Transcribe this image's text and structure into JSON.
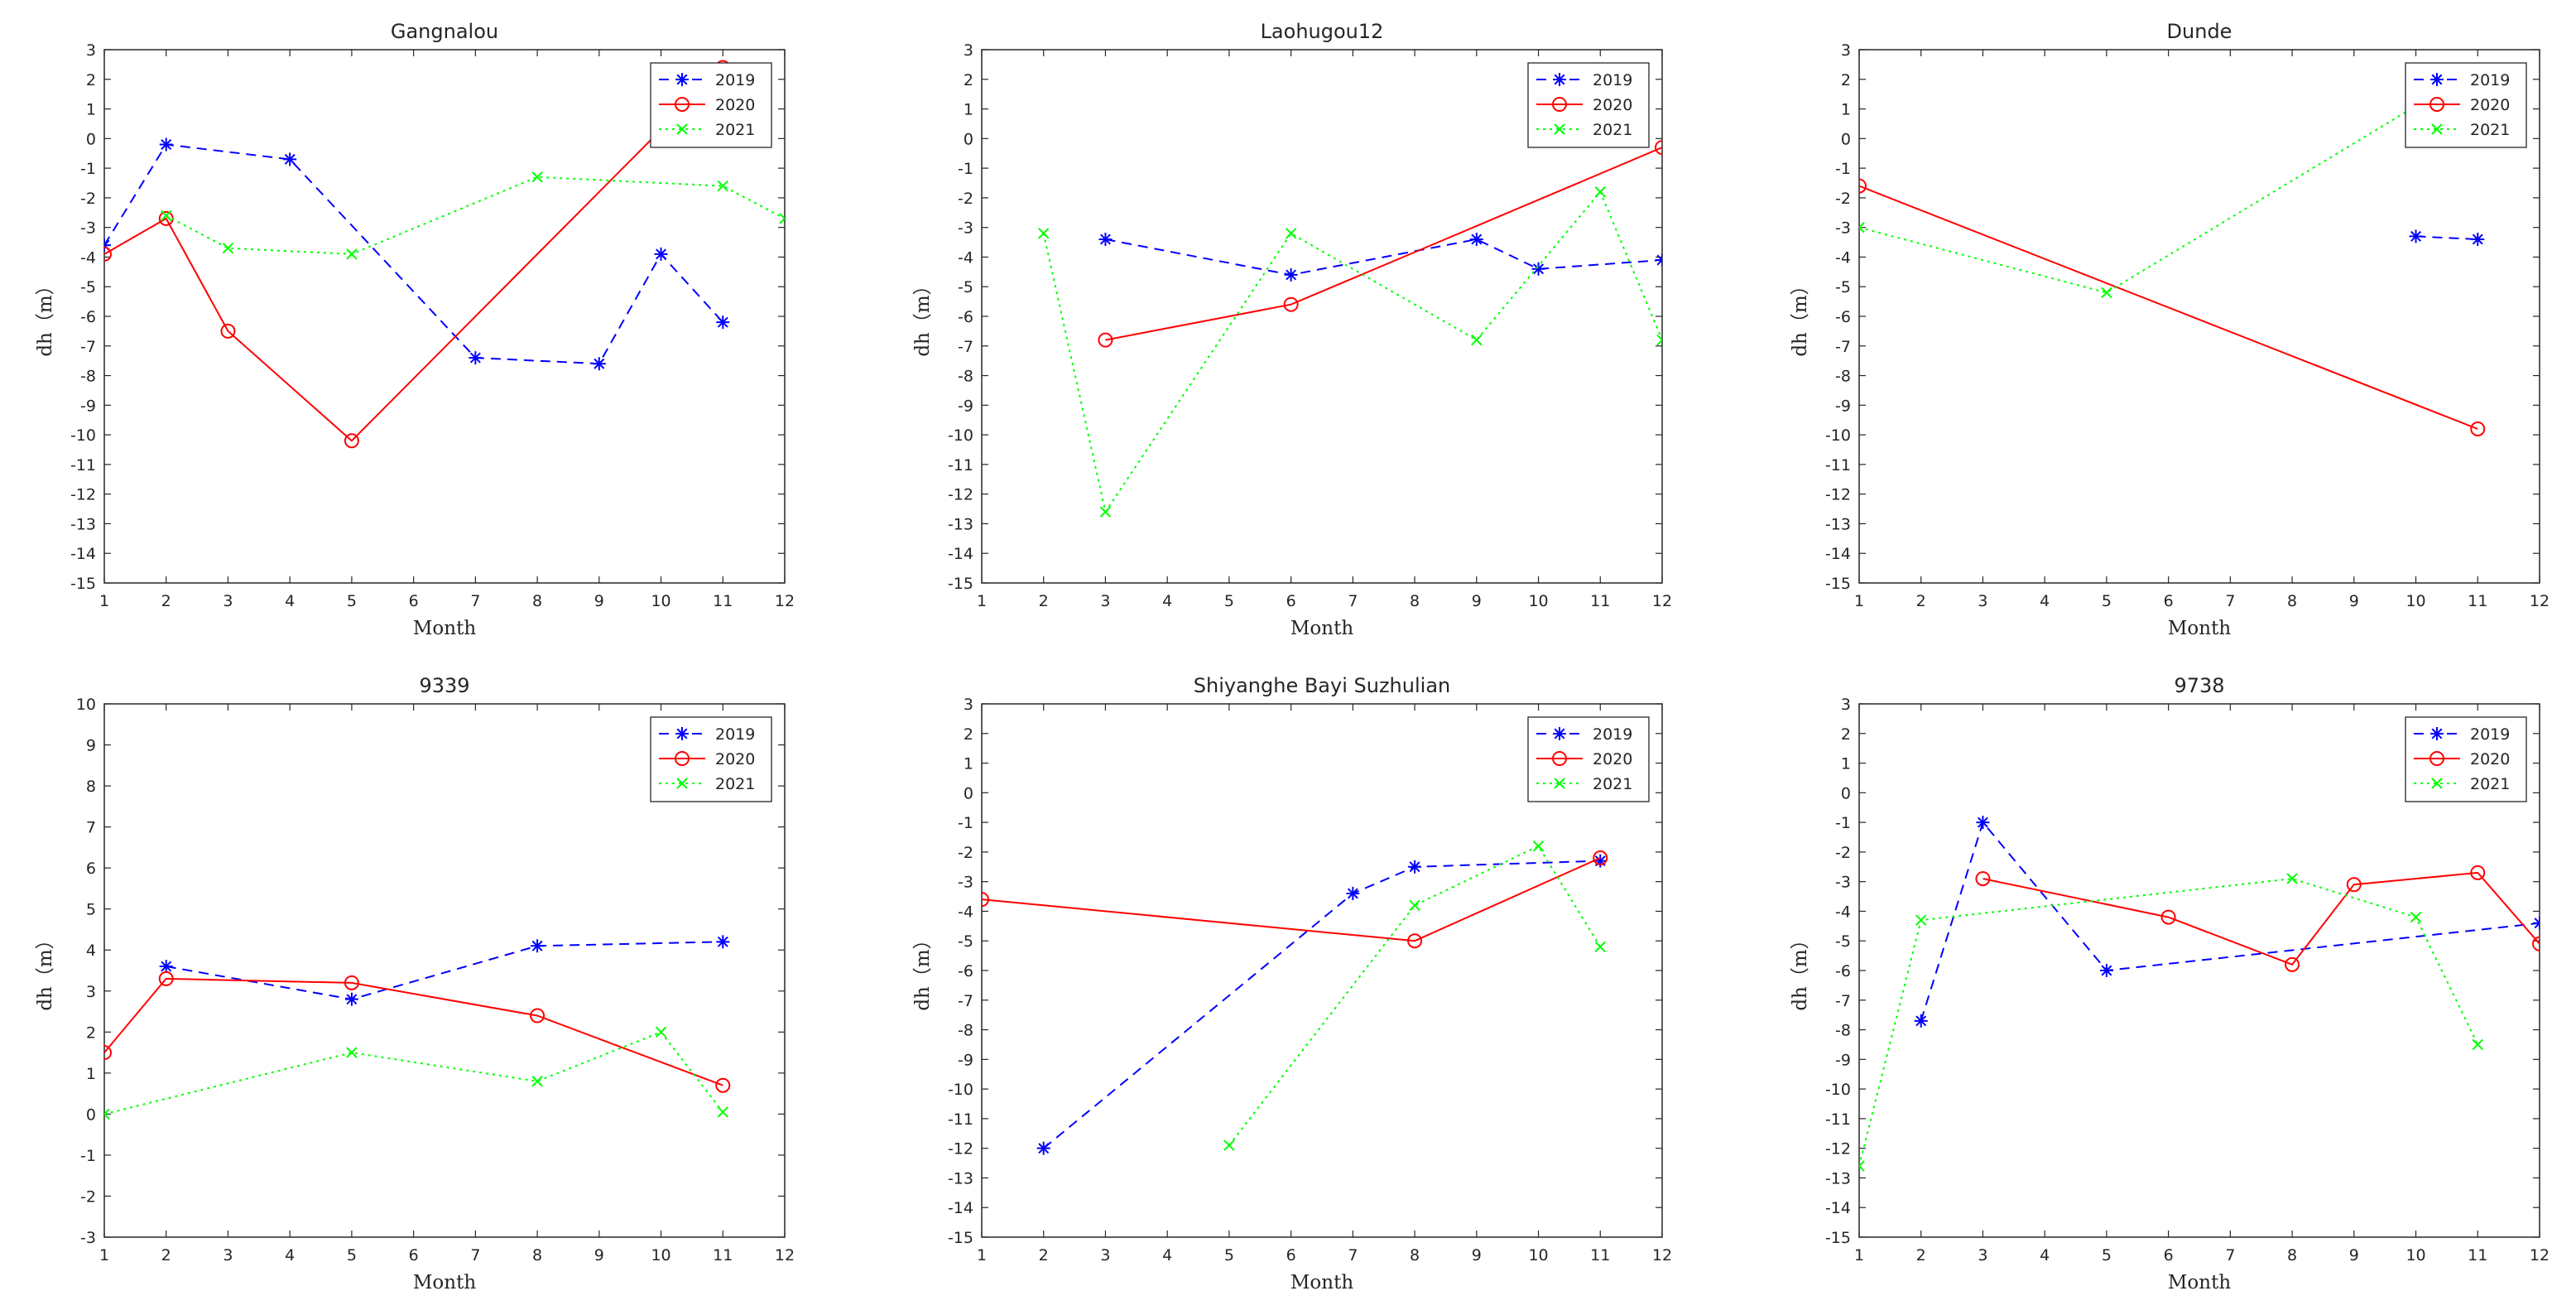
{
  "figure": {
    "series_names": [
      "2019",
      "2020",
      "2021"
    ],
    "series_colors": [
      "#0000ff",
      "#ff0000",
      "#00ff00"
    ],
    "markers": [
      "asterisk",
      "circle",
      "x-mark"
    ],
    "x_label": "Month",
    "y_label": "dh（m）"
  },
  "chart_data": [
    {
      "type": "line",
      "title": "Gangnalou",
      "xlabel": "Month",
      "ylabel": "dh（m）",
      "xlim": [
        1,
        12
      ],
      "ylim": [
        -15,
        3
      ],
      "yticks_step": 1,
      "legend": "top-right",
      "series": [
        {
          "name": "2019",
          "x": [
            1,
            2,
            4,
            7,
            9,
            10,
            11
          ],
          "y": [
            -3.6,
            -0.2,
            -0.7,
            -7.4,
            -7.6,
            -3.9,
            -6.2
          ]
        },
        {
          "name": "2020",
          "x": [
            1,
            2,
            3,
            5,
            11
          ],
          "y": [
            -3.9,
            -2.7,
            -6.5,
            -10.2,
            2.4
          ]
        },
        {
          "name": "2021",
          "x": [
            2,
            3,
            5,
            8,
            11,
            12
          ],
          "y": [
            -2.6,
            -3.7,
            -3.9,
            -1.3,
            -1.6,
            -2.7
          ]
        }
      ]
    },
    {
      "type": "line",
      "title": "Laohugou12",
      "xlabel": "Month",
      "ylabel": "dh（m）",
      "xlim": [
        1,
        12
      ],
      "ylim": [
        -15,
        3
      ],
      "yticks_step": 1,
      "legend": "top-right",
      "series": [
        {
          "name": "2019",
          "x": [
            3,
            6,
            9,
            10,
            12
          ],
          "y": [
            -3.4,
            -4.6,
            -3.4,
            -4.4,
            -4.1
          ]
        },
        {
          "name": "2020",
          "x": [
            3,
            6,
            12
          ],
          "y": [
            -6.8,
            -5.6,
            -0.3
          ]
        },
        {
          "name": "2021",
          "x": [
            2,
            3,
            6,
            9,
            11,
            12
          ],
          "y": [
            -3.2,
            -12.6,
            -3.2,
            -6.8,
            -1.8,
            -6.8
          ]
        }
      ]
    },
    {
      "type": "line",
      "title": "Dunde",
      "xlabel": "Month",
      "ylabel": "dh（m）",
      "xlim": [
        1,
        12
      ],
      "ylim": [
        -15,
        3
      ],
      "yticks_step": 1,
      "legend": "top-right",
      "series": [
        {
          "name": "2019",
          "x": [
            10,
            11
          ],
          "y": [
            -3.3,
            -3.4
          ]
        },
        {
          "name": "2020",
          "x": [
            1,
            11
          ],
          "y": [
            -1.6,
            -9.8
          ]
        },
        {
          "name": "2021",
          "x": [
            1,
            5,
            10
          ],
          "y": [
            -3.0,
            -5.2,
            1.1
          ]
        }
      ]
    },
    {
      "type": "line",
      "title": "9339",
      "xlabel": "Month",
      "ylabel": "dh（m）",
      "xlim": [
        1,
        12
      ],
      "ylim": [
        -3,
        10
      ],
      "yticks_step": 1,
      "legend": "top-right",
      "series": [
        {
          "name": "2019",
          "x": [
            2,
            5,
            8,
            11
          ],
          "y": [
            3.6,
            2.8,
            4.1,
            4.2
          ]
        },
        {
          "name": "2020",
          "x": [
            1,
            2,
            5,
            8,
            11
          ],
          "y": [
            1.5,
            3.3,
            3.2,
            2.4,
            0.7
          ]
        },
        {
          "name": "2021",
          "x": [
            1,
            5,
            8,
            10,
            11
          ],
          "y": [
            0.0,
            1.5,
            0.8,
            2.0,
            0.05
          ]
        }
      ]
    },
    {
      "type": "line",
      "title": "Shiyanghe Bayi Suzhulian",
      "xlabel": "Month",
      "ylabel": "dh（m）",
      "xlim": [
        1,
        12
      ],
      "ylim": [
        -15,
        3
      ],
      "yticks_step": 1,
      "legend": "top-right",
      "series": [
        {
          "name": "2019",
          "x": [
            2,
            7,
            8,
            11
          ],
          "y": [
            -12.0,
            -3.4,
            -2.5,
            -2.3
          ]
        },
        {
          "name": "2020",
          "x": [
            1,
            8,
            11
          ],
          "y": [
            -3.6,
            -5.0,
            -2.2
          ]
        },
        {
          "name": "2021",
          "x": [
            5,
            8,
            10,
            11
          ],
          "y": [
            -11.9,
            -3.8,
            -1.8,
            -5.2
          ]
        }
      ]
    },
    {
      "type": "line",
      "title": "9738",
      "xlabel": "Month",
      "ylabel": "dh（m）",
      "xlim": [
        1,
        12
      ],
      "ylim": [
        -15,
        3
      ],
      "yticks_step": 1,
      "legend": "top-right",
      "series": [
        {
          "name": "2019",
          "x": [
            2,
            3,
            5,
            12
          ],
          "y": [
            -7.7,
            -1.0,
            -6.0,
            -4.4
          ]
        },
        {
          "name": "2020",
          "x": [
            3,
            6,
            8,
            9,
            11,
            12
          ],
          "y": [
            -2.9,
            -4.2,
            -5.8,
            -3.1,
            -2.7,
            -5.1
          ]
        },
        {
          "name": "2021",
          "x": [
            1,
            2,
            8,
            10,
            11
          ],
          "y": [
            -12.6,
            -4.3,
            -2.9,
            -4.2,
            -8.5
          ]
        }
      ]
    }
  ]
}
